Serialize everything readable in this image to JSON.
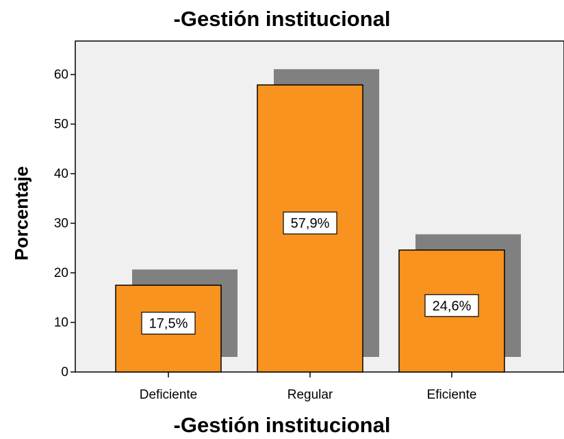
{
  "chart_data": {
    "type": "bar",
    "title": "-Gestión institucional",
    "xlabel": "-Gestión institucional",
    "ylabel": "Porcentaje",
    "categories": [
      "Deficiente",
      "Regular",
      "Eficiente"
    ],
    "values": [
      17.5,
      57.9,
      24.6
    ],
    "data_labels": [
      "17,5%",
      "57,9%",
      "24,6%"
    ],
    "ylim": [
      0,
      65
    ],
    "yticks": [
      0,
      10,
      20,
      30,
      40,
      50,
      60
    ],
    "ytick_labels": [
      "0",
      "10",
      "20",
      "30",
      "40",
      "50",
      "60"
    ],
    "grid": false,
    "legend": "none",
    "colors": {
      "bar": "#f7931e",
      "shadow": "#808080",
      "plot_background": "#f0f0f0",
      "border": "#000000"
    }
  }
}
